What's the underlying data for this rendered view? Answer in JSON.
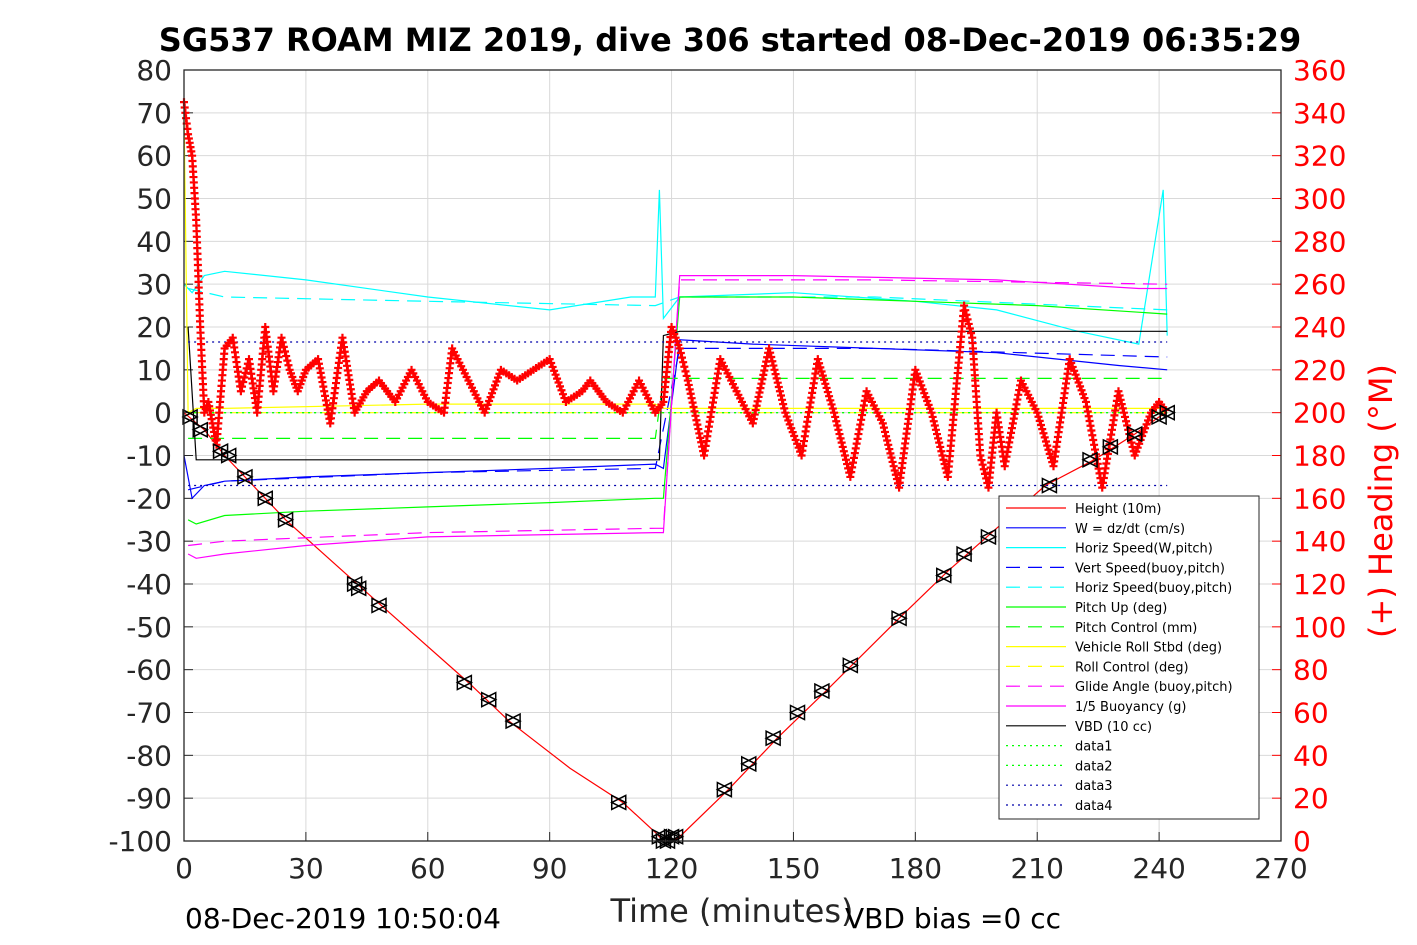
{
  "chart_data": {
    "type": "line",
    "title": "SG537 ROAM MIZ 2019, dive 306 started 08-Dec-2019 06:35:29",
    "xlabel": "Time (minutes)",
    "ylabel": "",
    "y2label": "(+) Heading (°M)",
    "xlim": [
      0,
      270
    ],
    "ylim": [
      -100,
      80
    ],
    "y2lim": [
      0,
      360
    ],
    "xticks": [
      "0",
      "30",
      "60",
      "90",
      "120",
      "150",
      "180",
      "210",
      "240",
      "270"
    ],
    "yticks": [
      "80",
      "70",
      "60",
      "50",
      "40",
      "30",
      "20",
      "10",
      "0",
      "-10",
      "-20",
      "-30",
      "-40",
      "-50",
      "-60",
      "-70",
      "-80",
      "-90",
      "-100"
    ],
    "y2ticks": [
      "360",
      "340",
      "320",
      "300",
      "280",
      "260",
      "240",
      "220",
      "200",
      "180",
      "160",
      "140",
      "120",
      "100",
      "80",
      "60",
      "40",
      "20",
      "0"
    ],
    "grid": true,
    "legend_position": "bottom-right",
    "footer_left": "08-Dec-2019 10:50:04",
    "footer_right": "VBD bias =0 cc",
    "colors": {
      "height": "#ff0000",
      "w": "#0000ff",
      "horiz_w": "#00ffff",
      "pitch": "#00ff00",
      "roll": "#ffff00",
      "glide": "#ff00ff",
      "vbd": "#000000",
      "data1": "#00ff00",
      "data3": "#0000aa",
      "heading": "#ff0000",
      "grid": "#d9d9d9"
    },
    "series": [
      {
        "name": "Height (10m)",
        "style": "solid",
        "color": "#ff0000",
        "x": [
          0,
          5,
          10,
          25,
          45,
          70,
          80,
          95,
          108,
          116,
          118,
          120,
          122,
          134,
          146,
          158,
          176,
          188,
          200,
          212,
          224,
          234,
          240,
          242
        ],
        "y": [
          0,
          -4,
          -10,
          -25,
          -42,
          -63,
          -72,
          -83,
          -91,
          -98,
          -100,
          -100,
          -99,
          -88,
          -76,
          -65,
          -48,
          -37,
          -27,
          -17,
          -11,
          -5,
          -1,
          0
        ]
      },
      {
        "name": "W = dz/dt (cm/s)",
        "style": "solid",
        "color": "#0000ff",
        "x": [
          0,
          2,
          5,
          10,
          30,
          60,
          90,
          116,
          118,
          122,
          140,
          170,
          200,
          230,
          242
        ],
        "y": [
          -10,
          -20,
          -17,
          -16,
          -15,
          -14,
          -13,
          -12,
          -13,
          17,
          16,
          15,
          14,
          11,
          10
        ]
      },
      {
        "name": "Horiz Speed(W,pitch)",
        "style": "solid",
        "color": "#00ffff",
        "x": [
          0,
          2,
          5,
          10,
          30,
          60,
          90,
          110,
          116,
          117,
          118,
          122,
          150,
          180,
          200,
          220,
          235,
          241,
          242
        ],
        "y": [
          30,
          28,
          32,
          33,
          31,
          27,
          24,
          27,
          27,
          52,
          22,
          27,
          28,
          26,
          24,
          19,
          16,
          52,
          18
        ]
      },
      {
        "name": "Vert Speed(buoy,pitch)",
        "style": "dash",
        "color": "#0000ff",
        "x": [
          1,
          10,
          60,
          116,
          122,
          170,
          242
        ],
        "y": [
          -18,
          -16,
          -14,
          -13,
          15,
          15,
          13
        ]
      },
      {
        "name": "Horiz Speed(buoy,pitch)",
        "style": "dash",
        "color": "#00ffff",
        "x": [
          1,
          10,
          60,
          116,
          122,
          170,
          242
        ],
        "y": [
          29,
          27,
          26,
          25,
          27,
          27,
          24
        ]
      },
      {
        "name": "Pitch Up (deg)",
        "style": "solid",
        "color": "#00ff00",
        "x": [
          1,
          3,
          10,
          30,
          60,
          90,
          116,
          118,
          122,
          150,
          180,
          210,
          242
        ],
        "y": [
          -25,
          -26,
          -24,
          -23,
          -22,
          -21,
          -20,
          -20,
          27,
          27,
          26,
          25,
          23
        ]
      },
      {
        "name": "Pitch Control (mm)",
        "style": "dash",
        "color": "#00ff00",
        "x": [
          1,
          116,
          118,
          242
        ],
        "y": [
          -6,
          -6,
          8,
          8
        ]
      },
      {
        "name": "Vehicle Roll Stbd (deg)",
        "style": "solid",
        "color": "#ffff00",
        "x": [
          0,
          1,
          3,
          10,
          60,
          116,
          118,
          242
        ],
        "y": [
          70,
          0,
          1,
          1,
          2,
          2,
          1,
          1
        ]
      },
      {
        "name": "Roll Control (deg)",
        "style": "dash",
        "color": "#ffff00",
        "x": [
          1,
          242
        ],
        "y": [
          0,
          0
        ]
      },
      {
        "name": "Glide Angle (buoy,pitch)",
        "style": "dash",
        "color": "#ff00ff",
        "x": [
          1,
          10,
          60,
          116,
          118,
          122,
          170,
          242
        ],
        "y": [
          -31,
          -30,
          -28,
          -27,
          -27,
          31,
          31,
          30
        ]
      },
      {
        "name": "1/5 Buoyancy (g)",
        "style": "solid",
        "color": "#ff00ff",
        "x": [
          1,
          3,
          10,
          30,
          60,
          116,
          118,
          122,
          150,
          200,
          235,
          242
        ],
        "y": [
          -33,
          -34,
          -33,
          -31,
          -29,
          -28,
          -28,
          32,
          32,
          31,
          29,
          29
        ]
      },
      {
        "name": "VBD (10 cc)",
        "style": "solid",
        "color": "#000000",
        "x": [
          1,
          3,
          117,
          118,
          122,
          221,
          222,
          242
        ],
        "y": [
          20,
          -11,
          -11,
          18,
          19,
          19,
          19,
          19
        ]
      },
      {
        "name": "data1",
        "style": "dot",
        "color": "#00ff00",
        "x": [
          1,
          242
        ],
        "y": [
          0,
          0
        ]
      },
      {
        "name": "data2",
        "style": "dot",
        "color": "#00ff00",
        "x": [
          1,
          242
        ],
        "y": [
          0,
          0
        ]
      },
      {
        "name": "data3",
        "style": "dot",
        "color": "#0000aa",
        "x": [
          1,
          242
        ],
        "y": [
          16.5,
          16.5
        ]
      },
      {
        "name": "data4",
        "style": "dot",
        "color": "#0000aa",
        "x": [
          1,
          242
        ],
        "y": [
          -17,
          -17
        ]
      }
    ],
    "heading_series": {
      "name": "(+) Heading (°M)",
      "x": [
        0,
        1,
        2,
        3,
        4,
        5,
        6,
        7,
        8,
        10,
        12,
        14,
        16,
        18,
        20,
        22,
        24,
        26,
        28,
        30,
        33,
        36,
        39,
        42,
        45,
        48,
        50,
        52,
        56,
        60,
        64,
        66,
        70,
        74,
        78,
        82,
        86,
        90,
        94,
        98,
        100,
        104,
        108,
        112,
        116,
        118,
        120,
        122,
        124,
        128,
        132,
        136,
        140,
        144,
        148,
        152,
        156,
        160,
        164,
        168,
        172,
        176,
        180,
        184,
        188,
        192,
        194,
        196,
        198,
        200,
        202,
        206,
        210,
        214,
        218,
        222,
        226,
        230,
        234,
        238,
        240,
        242
      ],
      "y": [
        345,
        330,
        320,
        290,
        240,
        200,
        205,
        195,
        185,
        230,
        235,
        210,
        225,
        200,
        240,
        210,
        235,
        220,
        210,
        220,
        225,
        195,
        235,
        200,
        210,
        215,
        210,
        205,
        220,
        205,
        200,
        230,
        215,
        200,
        220,
        215,
        220,
        225,
        205,
        210,
        215,
        205,
        200,
        215,
        200,
        205,
        240,
        230,
        215,
        180,
        225,
        210,
        195,
        230,
        200,
        180,
        225,
        200,
        170,
        210,
        195,
        165,
        220,
        200,
        170,
        250,
        235,
        180,
        165,
        200,
        175,
        215,
        200,
        175,
        225,
        205,
        165,
        210,
        180,
        200,
        205,
        200
      ]
    },
    "depth_markers": {
      "x": [
        1.5,
        4,
        9,
        11,
        15,
        20,
        25,
        42,
        43,
        48,
        69,
        75,
        81,
        107,
        117,
        118,
        119,
        120,
        121,
        133,
        139,
        145,
        151,
        157,
        164,
        176,
        187,
        192,
        198,
        213,
        223,
        228,
        234,
        240,
        242
      ],
      "y": [
        -1,
        -4,
        -9,
        -10,
        -15,
        -20,
        -25,
        -40,
        -41,
        -45,
        -63,
        -67,
        -72,
        -91,
        -99,
        -100,
        -100,
        -99,
        -99,
        -88,
        -82,
        -76,
        -70,
        -65,
        -59,
        -48,
        -38,
        -33,
        -29,
        -17,
        -11,
        -8,
        -5,
        -1,
        0
      ]
    }
  }
}
